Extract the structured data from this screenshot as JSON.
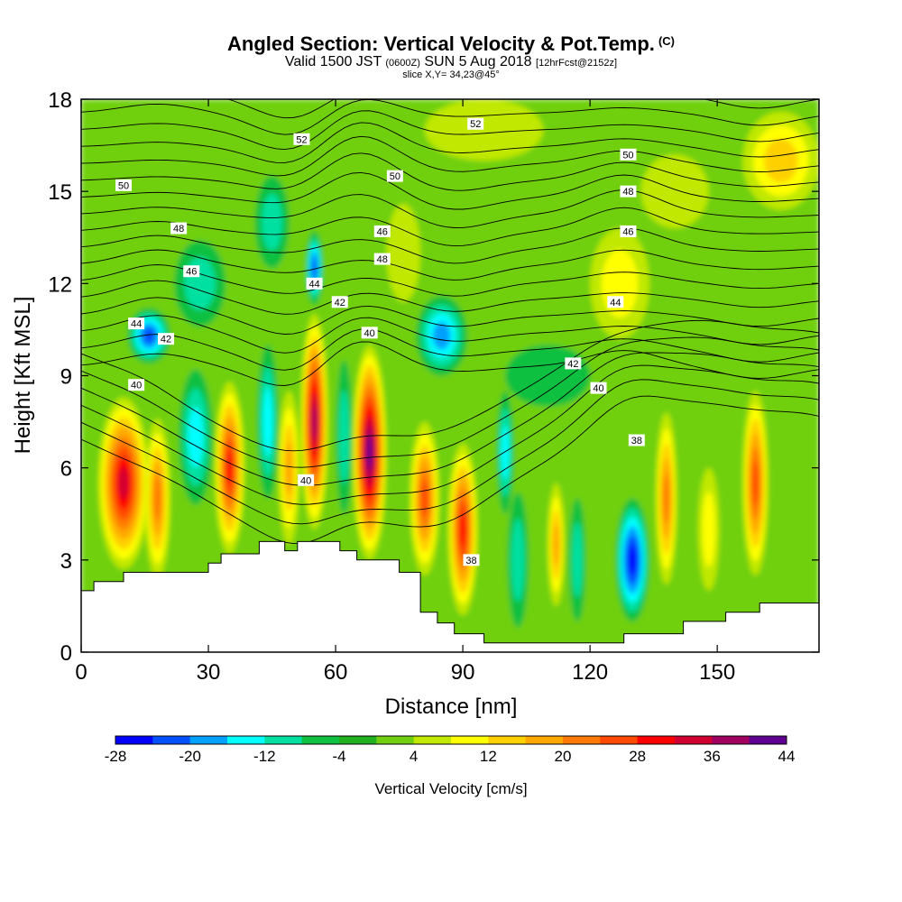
{
  "header": {
    "title": "Angled Section: Vertical Velocity & Pot.Temp.",
    "title_mark": "(C)",
    "subtitle_pre": "Valid 1500 JST",
    "subtitle_utc": "(0600Z)",
    "subtitle_date": "SUN 5 Aug 2018",
    "subtitle_fcst": "[12hrFcst@2152z]",
    "slice": "slice X,Y= 34,23@45°"
  },
  "chart_data": {
    "type": "heatmap",
    "title": "Angled Section: Vertical Velocity & Pot.Temp.",
    "xlabel": "Distance [nm]",
    "ylabel": "Height [Kft MSL]",
    "xlim": [
      0,
      174
    ],
    "ylim": [
      0,
      18
    ],
    "x_ticks": [
      "0",
      "30",
      "60",
      "90",
      "120",
      "150"
    ],
    "x_tick_values": [
      0,
      30,
      60,
      90,
      120,
      150
    ],
    "y_ticks": [
      "0",
      "3",
      "6",
      "9",
      "12",
      "15",
      "18"
    ],
    "y_tick_values": [
      0,
      3,
      6,
      9,
      12,
      15,
      18
    ],
    "colorbar": {
      "label": "Vertical Velocity [cm/s]",
      "tick_labels": [
        "-28",
        "-20",
        "-12",
        "-4",
        "4",
        "12",
        "20",
        "28",
        "36",
        "44"
      ],
      "levels": [
        -28,
        -24,
        -20,
        -16,
        -12,
        -8,
        -4,
        0,
        4,
        8,
        12,
        16,
        20,
        24,
        28,
        32,
        36,
        40,
        44
      ],
      "colors": [
        "#0000ff",
        "#0050ff",
        "#00a0ff",
        "#00ffff",
        "#00e0a0",
        "#10c040",
        "#20b020",
        "#70d010",
        "#c0e800",
        "#ffff00",
        "#ffd000",
        "#ffa800",
        "#ff7a00",
        "#ff4a00",
        "#ff0000",
        "#d00030",
        "#a00060",
        "#600090"
      ]
    },
    "background_field": "#70d010",
    "velocity_features": [
      {
        "x": 10,
        "y": 5.5,
        "rx": 6,
        "ry": 2.8,
        "v": 32
      },
      {
        "x": 18,
        "y": 5.0,
        "rx": 3,
        "ry": 2.6,
        "v": 20
      },
      {
        "x": 16,
        "y": 10.3,
        "rx": 5,
        "ry": 0.9,
        "v": -22
      },
      {
        "x": 27,
        "y": 7.0,
        "rx": 4,
        "ry": 2.2,
        "v": -14
      },
      {
        "x": 35,
        "y": 6.0,
        "rx": 3.5,
        "ry": 2.8,
        "v": 30
      },
      {
        "x": 44,
        "y": 7.5,
        "rx": 2.5,
        "ry": 2.5,
        "v": -12
      },
      {
        "x": 49,
        "y": 6.0,
        "rx": 2.5,
        "ry": 2.5,
        "v": 16
      },
      {
        "x": 55,
        "y": 7.5,
        "rx": 3.2,
        "ry": 3.5,
        "v": 38
      },
      {
        "x": 55,
        "y": 12.5,
        "rx": 2,
        "ry": 1.2,
        "v": -20
      },
      {
        "x": 62,
        "y": 7.0,
        "rx": 2,
        "ry": 2.5,
        "v": -10
      },
      {
        "x": 68,
        "y": 6.5,
        "rx": 4,
        "ry": 3.5,
        "v": 40
      },
      {
        "x": 85,
        "y": 10.3,
        "rx": 6,
        "ry": 1.3,
        "v": -16
      },
      {
        "x": 81,
        "y": 5.0,
        "rx": 3.5,
        "ry": 2.5,
        "v": 24
      },
      {
        "x": 90,
        "y": 4.0,
        "rx": 3.5,
        "ry": 2.8,
        "v": 30
      },
      {
        "x": 100,
        "y": 6.5,
        "rx": 2,
        "ry": 2.0,
        "v": -14
      },
      {
        "x": 103,
        "y": 3.0,
        "rx": 2.5,
        "ry": 2.2,
        "v": -10
      },
      {
        "x": 112,
        "y": 3.5,
        "rx": 2,
        "ry": 2.0,
        "v": 16
      },
      {
        "x": 117,
        "y": 3.0,
        "rx": 2,
        "ry": 2.0,
        "v": -8
      },
      {
        "x": 130,
        "y": 3.0,
        "rx": 4,
        "ry": 2.0,
        "v": -26
      },
      {
        "x": 138,
        "y": 5.0,
        "rx": 2.5,
        "ry": 2.8,
        "v": 22
      },
      {
        "x": 148,
        "y": 4.0,
        "rx": 2.5,
        "ry": 2.0,
        "v": 8
      },
      {
        "x": 159,
        "y": 5.5,
        "rx": 3,
        "ry": 3.0,
        "v": 26
      },
      {
        "x": 127,
        "y": 12.0,
        "rx": 7,
        "ry": 1.8,
        "v": 10
      },
      {
        "x": 165,
        "y": 16.0,
        "rx": 9,
        "ry": 1.6,
        "v": 12
      },
      {
        "x": 140,
        "y": 15.0,
        "rx": 8,
        "ry": 1.2,
        "v": 6
      },
      {
        "x": 95,
        "y": 17.0,
        "rx": 14,
        "ry": 1.0,
        "v": 6
      },
      {
        "x": 28,
        "y": 12.0,
        "rx": 6,
        "ry": 1.4,
        "v": -8
      },
      {
        "x": 45,
        "y": 14.0,
        "rx": 4,
        "ry": 1.5,
        "v": -10
      },
      {
        "x": 110,
        "y": 9.0,
        "rx": 10,
        "ry": 1.0,
        "v": -4
      },
      {
        "x": 76,
        "y": 13.0,
        "rx": 4,
        "ry": 1.6,
        "v": 4
      }
    ],
    "terrain": {
      "x": [
        0,
        3,
        3,
        10,
        10,
        30,
        30,
        33,
        33,
        42,
        42,
        48,
        48,
        51,
        51,
        61,
        61,
        65,
        65,
        75,
        75,
        80,
        80,
        84,
        84,
        88,
        88,
        95,
        95,
        128,
        128,
        142,
        142,
        152,
        152,
        160,
        160,
        174
      ],
      "y": [
        2.0,
        2.0,
        2.3,
        2.3,
        2.6,
        2.6,
        2.9,
        2.9,
        3.2,
        3.2,
        3.6,
        3.6,
        3.3,
        3.3,
        3.6,
        3.6,
        3.3,
        3.3,
        3.0,
        3.0,
        2.6,
        2.6,
        1.3,
        1.3,
        0.95,
        0.95,
        0.6,
        0.6,
        0.3,
        0.3,
        0.6,
        0.6,
        1.0,
        1.0,
        1.3,
        1.3,
        1.6,
        1.6
      ]
    },
    "theta_contour_labels": [
      {
        "text": "52",
        "x": 52,
        "y": 16.7
      },
      {
        "text": "52",
        "x": 93,
        "y": 17.2
      },
      {
        "text": "50",
        "x": 10,
        "y": 15.2
      },
      {
        "text": "50",
        "x": 74,
        "y": 15.5
      },
      {
        "text": "50",
        "x": 129,
        "y": 16.2
      },
      {
        "text": "48",
        "x": 23,
        "y": 13.8
      },
      {
        "text": "48",
        "x": 129,
        "y": 15.0
      },
      {
        "text": "48",
        "x": 71,
        "y": 12.8
      },
      {
        "text": "46",
        "x": 26,
        "y": 12.4
      },
      {
        "text": "46",
        "x": 71,
        "y": 13.7
      },
      {
        "text": "46",
        "x": 129,
        "y": 13.7
      },
      {
        "text": "44",
        "x": 55,
        "y": 12.0
      },
      {
        "text": "44",
        "x": 13,
        "y": 10.7
      },
      {
        "text": "44",
        "x": 126,
        "y": 11.4
      },
      {
        "text": "42",
        "x": 20,
        "y": 10.2
      },
      {
        "text": "42",
        "x": 61,
        "y": 11.4
      },
      {
        "text": "42",
        "x": 116,
        "y": 9.4
      },
      {
        "text": "40",
        "x": 13,
        "y": 8.7
      },
      {
        "text": "40",
        "x": 68,
        "y": 10.4
      },
      {
        "text": "40",
        "x": 122,
        "y": 8.6
      },
      {
        "text": "40",
        "x": 53,
        "y": 5.6
      },
      {
        "text": "38",
        "x": 131,
        "y": 6.9
      },
      {
        "text": "38",
        "x": 92,
        "y": 3.0
      }
    ]
  }
}
